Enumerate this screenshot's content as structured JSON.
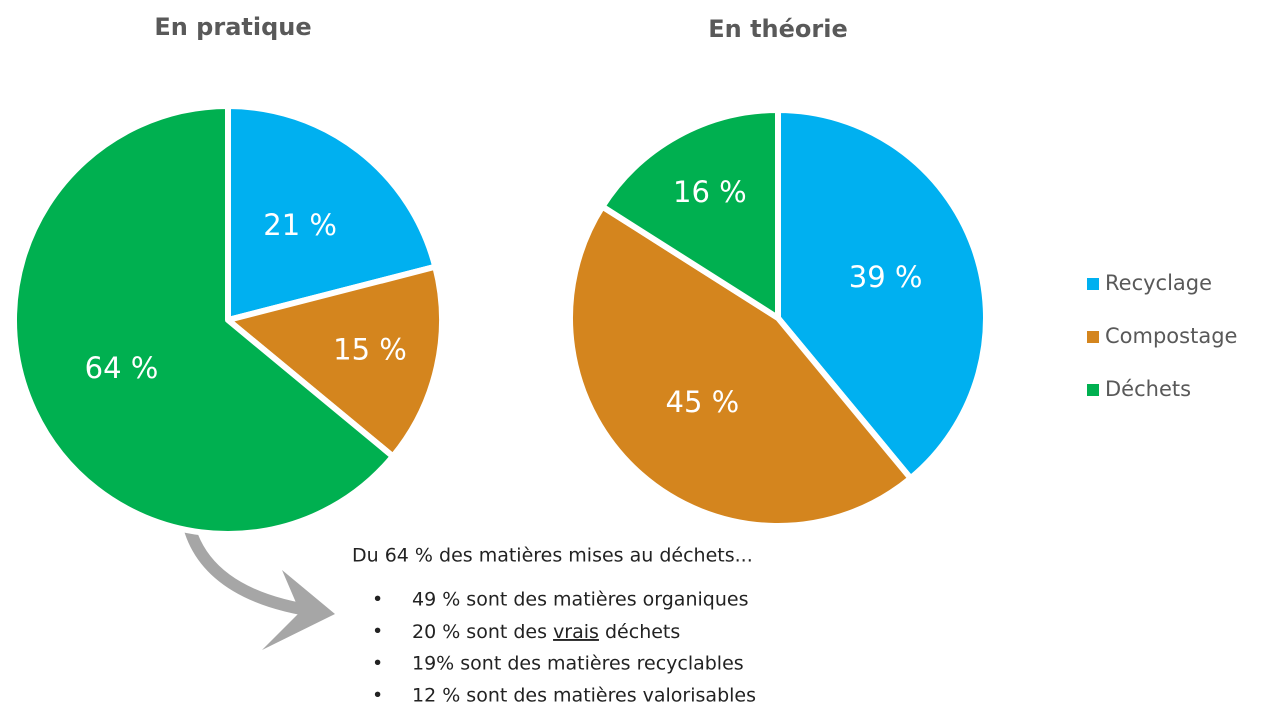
{
  "chart_data": [
    {
      "type": "pie",
      "title": "En pratique",
      "categories": [
        "Recyclage",
        "Compostage",
        "Déchets"
      ],
      "values": [
        21,
        15,
        64
      ],
      "value_labels": [
        "21 %",
        "15 %",
        "64 %"
      ],
      "colors": [
        "#00b0f0",
        "#d4851e",
        "#00b050"
      ]
    },
    {
      "type": "pie",
      "title": "En théorie",
      "categories": [
        "Recyclage",
        "Compostage",
        "Déchets"
      ],
      "values": [
        39,
        45,
        16
      ],
      "value_labels": [
        "39 %",
        "45 %",
        "16 %"
      ],
      "colors": [
        "#00b0f0",
        "#d4851e",
        "#00b050"
      ]
    }
  ],
  "annotation": {
    "heading": "Du 64 % des matières mises au déchets...",
    "items": [
      "49 % sont des matières organiques",
      {
        "text": "20 % sont des ",
        "underline": "vrais",
        "after": " déchets"
      },
      "19% sont des matières recyclables",
      "12 % sont des matières valorisables"
    ]
  }
}
